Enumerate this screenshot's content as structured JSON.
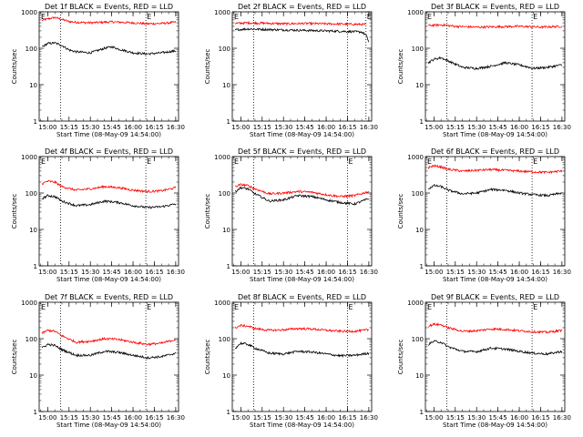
{
  "chart_data": [
    {
      "type": "line",
      "title": "Det 1f BLACK = Events, RED = LLD",
      "xlabel": "Start Time (08-May-09 14:54:00)",
      "ylabel": "Counts/sec",
      "xticks": [
        "15:00",
        "15:15",
        "15:30",
        "15:45",
        "16:00",
        "16:15",
        "16:30"
      ],
      "xlim": [
        "14:54:00",
        "16:32:00"
      ],
      "yscale": "log",
      "ylim": [
        1,
        1000
      ],
      "yticks": [
        "1",
        "10",
        "100",
        "1000"
      ],
      "marker": "E",
      "vlines": [
        "15:09",
        "16:09"
      ],
      "series": [
        {
          "color": "#ff0000",
          "x": [
            "14:56",
            "15:00",
            "15:05",
            "15:10",
            "15:15",
            "15:20",
            "15:30",
            "15:40",
            "15:45",
            "15:50",
            "16:00",
            "16:10",
            "16:20",
            "16:30"
          ],
          "values": [
            580,
            640,
            700,
            620,
            540,
            520,
            500,
            520,
            530,
            520,
            500,
            470,
            480,
            520
          ]
        },
        {
          "color": "#000000",
          "x": [
            "14:56",
            "15:00",
            "15:05",
            "15:10",
            "15:15",
            "15:20",
            "15:30",
            "15:40",
            "15:45",
            "15:50",
            "16:00",
            "16:10",
            "16:20",
            "16:30"
          ],
          "values": [
            110,
            135,
            140,
            120,
            90,
            80,
            75,
            100,
            110,
            95,
            75,
            70,
            75,
            85
          ]
        }
      ]
    },
    {
      "type": "line",
      "title": "Det 2f BLACK = Events, RED = LLD",
      "xlabel": "Start Time (08-May-09 14:54:00)",
      "ylabel": "Counts/sec",
      "xticks": [
        "15:00",
        "15:15",
        "15:30",
        "15:45",
        "16:00",
        "16:15",
        "16:30"
      ],
      "xlim": [
        "14:54:00",
        "16:32:00"
      ],
      "yscale": "log",
      "ylim": [
        1,
        1000
      ],
      "yticks": [
        "1",
        "10",
        "100",
        "1000"
      ],
      "marker": "E",
      "vlines": [
        "15:09",
        "16:15",
        "16:28"
      ],
      "series": [
        {
          "color": "#ff0000",
          "x": [
            "14:56",
            "15:05",
            "15:15",
            "15:30",
            "15:45",
            "16:00",
            "16:15",
            "16:28"
          ],
          "values": [
            480,
            500,
            490,
            470,
            480,
            470,
            460,
            450
          ]
        },
        {
          "color": "#000000",
          "x": [
            "14:56",
            "15:05",
            "15:15",
            "15:30",
            "15:45",
            "16:00",
            "16:15",
            "16:25",
            "16:28",
            "16:30"
          ],
          "values": [
            320,
            340,
            330,
            320,
            310,
            300,
            290,
            280,
            230,
            150
          ]
        }
      ]
    },
    {
      "type": "line",
      "title": "Det 3f BLACK = Events, RED = LLD",
      "xlabel": "Start Time (08-May-09 14:54:00)",
      "ylabel": "Counts/sec",
      "xticks": [
        "15:00",
        "15:15",
        "15:30",
        "15:45",
        "16:00",
        "16:15",
        "16:30"
      ],
      "xlim": [
        "14:54:00",
        "16:32:00"
      ],
      "yscale": "log",
      "ylim": [
        1,
        1000
      ],
      "yticks": [
        "1",
        "10",
        "100",
        "1000"
      ],
      "marker": "E",
      "vlines": [
        "15:09",
        "16:09"
      ],
      "series": [
        {
          "color": "#ff0000",
          "x": [
            "14:56",
            "15:05",
            "15:15",
            "15:30",
            "15:45",
            "16:00",
            "16:15",
            "16:30"
          ],
          "values": [
            420,
            440,
            400,
            380,
            390,
            400,
            380,
            400
          ]
        },
        {
          "color": "#000000",
          "x": [
            "14:56",
            "15:00",
            "15:05",
            "15:10",
            "15:20",
            "15:30",
            "15:40",
            "15:50",
            "16:00",
            "16:10",
            "16:20",
            "16:30"
          ],
          "values": [
            40,
            50,
            55,
            45,
            30,
            28,
            32,
            40,
            35,
            28,
            30,
            35
          ]
        }
      ]
    },
    {
      "type": "line",
      "title": "Det 4f BLACK = Events, RED = LLD",
      "xlabel": "Start Time (08-May-09 14:54:00)",
      "ylabel": "Counts/sec",
      "xticks": [
        "15:00",
        "15:15",
        "15:30",
        "15:45",
        "16:00",
        "16:15",
        "16:30"
      ],
      "xlim": [
        "14:54:00",
        "16:32:00"
      ],
      "yscale": "log",
      "ylim": [
        1,
        1000
      ],
      "yticks": [
        "1",
        "10",
        "100",
        "1000"
      ],
      "marker": "E",
      "vlines": [
        "15:09",
        "16:09"
      ],
      "series": [
        {
          "color": "#ff0000",
          "x": [
            "14:56",
            "15:00",
            "15:05",
            "15:10",
            "15:20",
            "15:30",
            "15:40",
            "15:50",
            "16:00",
            "16:10",
            "16:20",
            "16:30"
          ],
          "values": [
            180,
            210,
            200,
            150,
            120,
            130,
            150,
            140,
            120,
            110,
            115,
            140
          ]
        },
        {
          "color": "#000000",
          "x": [
            "14:56",
            "15:00",
            "15:05",
            "15:10",
            "15:20",
            "15:30",
            "15:40",
            "15:50",
            "16:00",
            "16:10",
            "16:20",
            "16:30"
          ],
          "values": [
            70,
            85,
            80,
            60,
            45,
            48,
            60,
            55,
            45,
            40,
            42,
            50
          ]
        }
      ]
    },
    {
      "type": "line",
      "title": "Det 5f BLACK = Events, RED = LLD",
      "xlabel": "Start Time (08-May-09 14:54:00)",
      "ylabel": "Counts/sec",
      "xticks": [
        "15:00",
        "15:15",
        "15:30",
        "15:45",
        "16:00",
        "16:15",
        "16:30"
      ],
      "xlim": [
        "14:54:00",
        "16:32:00"
      ],
      "yscale": "log",
      "ylim": [
        1,
        1000
      ],
      "yticks": [
        "1",
        "10",
        "100",
        "1000"
      ],
      "marker": "E",
      "vlines": [
        "15:09",
        "16:15"
      ],
      "series": [
        {
          "color": "#ff0000",
          "x": [
            "14:56",
            "15:00",
            "15:05",
            "15:10",
            "15:20",
            "15:30",
            "15:40",
            "15:50",
            "16:00",
            "16:10",
            "16:20",
            "16:30"
          ],
          "values": [
            150,
            170,
            160,
            130,
            95,
            100,
            110,
            105,
            90,
            80,
            85,
            110
          ]
        },
        {
          "color": "#000000",
          "x": [
            "14:56",
            "15:00",
            "15:05",
            "15:10",
            "15:20",
            "15:30",
            "15:40",
            "15:50",
            "16:00",
            "16:10",
            "16:20",
            "16:30"
          ],
          "values": [
            110,
            140,
            130,
            95,
            60,
            65,
            85,
            80,
            65,
            55,
            50,
            70
          ]
        }
      ]
    },
    {
      "type": "line",
      "title": "Det 6f BLACK = Events, RED = LLD",
      "xlabel": "Start Time (08-May-09 14:54:00)",
      "ylabel": "Counts/sec",
      "xticks": [
        "15:00",
        "15:15",
        "15:30",
        "15:45",
        "16:00",
        "16:15",
        "16:30"
      ],
      "xlim": [
        "14:54:00",
        "16:32:00"
      ],
      "yscale": "log",
      "ylim": [
        1,
        1000
      ],
      "yticks": [
        "1",
        "10",
        "100",
        "1000"
      ],
      "marker": "E",
      "vlines": [
        "15:09",
        "16:09"
      ],
      "series": [
        {
          "color": "#ff0000",
          "x": [
            "14:56",
            "15:00",
            "15:05",
            "15:10",
            "15:20",
            "15:30",
            "15:40",
            "15:50",
            "16:00",
            "16:10",
            "16:20",
            "16:30"
          ],
          "values": [
            500,
            560,
            520,
            450,
            400,
            420,
            440,
            420,
            400,
            380,
            370,
            400
          ]
        },
        {
          "color": "#000000",
          "x": [
            "14:56",
            "15:00",
            "15:05",
            "15:10",
            "15:20",
            "15:30",
            "15:40",
            "15:50",
            "16:00",
            "16:10",
            "16:20",
            "16:30"
          ],
          "values": [
            130,
            160,
            150,
            120,
            95,
            100,
            125,
            120,
            100,
            90,
            85,
            100
          ]
        }
      ]
    },
    {
      "type": "line",
      "title": "Det 7f BLACK = Events, RED = LLD",
      "xlabel": "Start Time (08-May-09 14:54:00)",
      "ylabel": "Counts/sec",
      "xticks": [
        "15:00",
        "15:15",
        "15:30",
        "15:45",
        "16:00",
        "16:15",
        "16:30"
      ],
      "xlim": [
        "14:54:00",
        "16:32:00"
      ],
      "yscale": "log",
      "ylim": [
        1,
        1000
      ],
      "yticks": [
        "1",
        "10",
        "100",
        "1000"
      ],
      "marker": "E",
      "vlines": [
        "15:09",
        "16:09"
      ],
      "series": [
        {
          "color": "#ff0000",
          "x": [
            "14:56",
            "15:00",
            "15:05",
            "15:10",
            "15:20",
            "15:30",
            "15:40",
            "15:50",
            "16:00",
            "16:10",
            "16:20",
            "16:30"
          ],
          "values": [
            140,
            170,
            160,
            120,
            80,
            85,
            100,
            95,
            80,
            70,
            75,
            95
          ]
        },
        {
          "color": "#000000",
          "x": [
            "14:56",
            "15:00",
            "15:05",
            "15:10",
            "15:20",
            "15:30",
            "15:40",
            "15:50",
            "16:00",
            "16:10",
            "16:20",
            "16:30"
          ],
          "values": [
            55,
            70,
            65,
            50,
            35,
            35,
            45,
            42,
            35,
            30,
            32,
            40
          ]
        }
      ]
    },
    {
      "type": "line",
      "title": "Det 8f BLACK = Events, RED = LLD",
      "xlabel": "Start Time (08-May-09 14:54:00)",
      "ylabel": "Counts/sec",
      "xticks": [
        "15:00",
        "15:15",
        "15:30",
        "15:45",
        "16:00",
        "16:15",
        "16:30"
      ],
      "xlim": [
        "14:54:00",
        "16:32:00"
      ],
      "yscale": "log",
      "ylim": [
        1,
        1000
      ],
      "yticks": [
        "1",
        "10",
        "100",
        "1000"
      ],
      "marker": "E",
      "vlines": [
        "15:09",
        "16:15"
      ],
      "series": [
        {
          "color": "#ff0000",
          "x": [
            "14:56",
            "15:00",
            "15:05",
            "15:10",
            "15:20",
            "15:30",
            "15:40",
            "15:50",
            "16:00",
            "16:10",
            "16:20",
            "16:30"
          ],
          "values": [
            200,
            230,
            220,
            190,
            170,
            175,
            190,
            185,
            170,
            160,
            160,
            175
          ]
        },
        {
          "color": "#000000",
          "x": [
            "14:56",
            "15:00",
            "15:05",
            "15:10",
            "15:20",
            "15:30",
            "15:40",
            "15:50",
            "16:00",
            "16:10",
            "16:20",
            "16:30"
          ],
          "values": [
            55,
            75,
            70,
            55,
            40,
            38,
            45,
            43,
            38,
            34,
            35,
            40
          ]
        }
      ]
    },
    {
      "type": "line",
      "title": "Det 9f BLACK = Events, RED = LLD",
      "xlabel": "Start Time (08-May-09 14:54:00)",
      "ylabel": "Counts/sec",
      "xticks": [
        "15:00",
        "15:15",
        "15:30",
        "15:45",
        "16:00",
        "16:15",
        "16:30"
      ],
      "xlim": [
        "14:54:00",
        "16:32:00"
      ],
      "yscale": "log",
      "ylim": [
        1,
        1000
      ],
      "yticks": [
        "1",
        "10",
        "100",
        "1000"
      ],
      "marker": "E",
      "vlines": [
        "15:09",
        "16:09"
      ],
      "series": [
        {
          "color": "#ff0000",
          "x": [
            "14:56",
            "15:00",
            "15:05",
            "15:10",
            "15:20",
            "15:30",
            "15:40",
            "15:50",
            "16:00",
            "16:10",
            "16:20",
            "16:30"
          ],
          "values": [
            220,
            250,
            240,
            200,
            160,
            165,
            185,
            180,
            165,
            155,
            150,
            170
          ]
        },
        {
          "color": "#000000",
          "x": [
            "14:56",
            "15:00",
            "15:05",
            "15:10",
            "15:20",
            "15:30",
            "15:40",
            "15:50",
            "16:00",
            "16:10",
            "16:20",
            "16:30"
          ],
          "values": [
            70,
            85,
            80,
            60,
            45,
            44,
            55,
            52,
            45,
            40,
            38,
            45
          ]
        }
      ]
    }
  ]
}
